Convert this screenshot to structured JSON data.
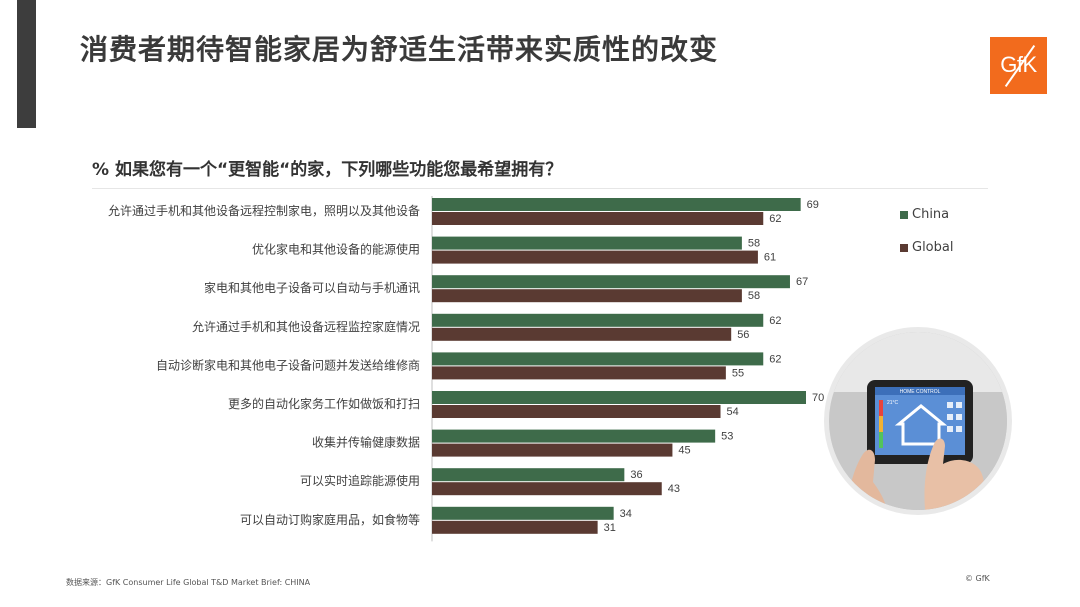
{
  "page": {
    "title": "消费者期待智能家居为舒适生活带来实质性的改变",
    "logo_text": "GfK",
    "source": "数据来源：GfK Consumer Life Global T&D Market Brief: CHINA",
    "copyright": "© GfK"
  },
  "colors": {
    "china": "#3e6b4a",
    "global": "#5a3a32",
    "accent": "#f26b1d"
  },
  "chart_data": {
    "type": "bar",
    "orientation": "horizontal",
    "title": "% 如果您有一个“更智能“的家，下列哪些功能您最希望拥有？",
    "categories": [
      "允许通过手机和其他设备远程控制家电，照明以及其他设备",
      "优化家电和其他设备的能源使用",
      "家电和其他电子设备可以自动与手机通讯",
      "允许通过手机和其他设备远程监控家庭情况",
      "自动诊断家电和其他电子设备问题并发送给维修商",
      "更多的自动化家务工作如做饭和打扫",
      "收集并传输健康数据",
      "可以实时追踪能源使用",
      "可以自动订购家庭用品，如食物等"
    ],
    "series": [
      {
        "name": "China",
        "values": [
          69,
          58,
          67,
          62,
          62,
          70,
          53,
          36,
          34
        ]
      },
      {
        "name": "Global",
        "values": [
          62,
          61,
          58,
          56,
          55,
          54,
          45,
          43,
          31
        ]
      }
    ],
    "xlim": [
      0,
      70
    ],
    "legend": "right"
  },
  "illustration": {
    "screen_title": "HOME CONTROL",
    "temperature": "21°C"
  }
}
